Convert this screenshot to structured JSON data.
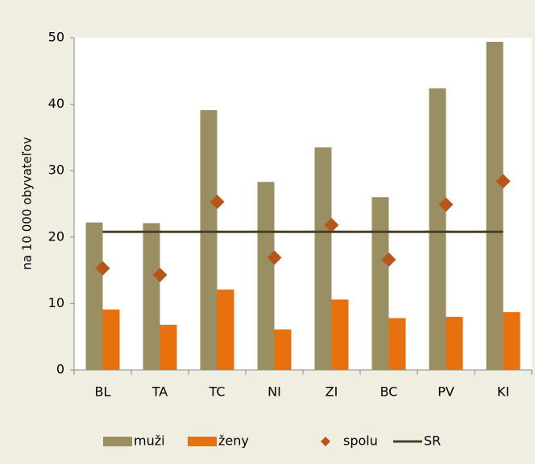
{
  "chart_data": {
    "type": "bar",
    "y_label": "na 10 000 obyvateľov",
    "categories": [
      "BL",
      "TA",
      "TC",
      "NI",
      "ZI",
      "BC",
      "PV",
      "KI"
    ],
    "series": [
      {
        "name": "muži",
        "type": "bar",
        "color": "#9a8f62",
        "values": [
          22.2,
          22.1,
          39.1,
          28.3,
          33.5,
          26.0,
          42.4,
          49.4
        ]
      },
      {
        "name": "ženy",
        "type": "bar",
        "color": "#e8700e",
        "values": [
          9.1,
          6.8,
          12.1,
          6.1,
          10.6,
          7.8,
          8.0,
          8.7
        ]
      },
      {
        "name": "spolu",
        "type": "scatter",
        "color": "#b5561a",
        "values": [
          15.3,
          14.3,
          25.3,
          16.9,
          21.8,
          16.6,
          24.9,
          28.4
        ]
      },
      {
        "name": "SR",
        "type": "line",
        "color": "#4a3f26",
        "values": [
          20.8,
          20.8,
          20.8,
          20.8,
          20.8,
          20.8,
          20.8,
          20.8
        ]
      }
    ],
    "ylim": [
      0,
      50
    ],
    "yticks": [
      0,
      10,
      20,
      30,
      40,
      50
    ],
    "grid": false,
    "legend": "bottom"
  }
}
